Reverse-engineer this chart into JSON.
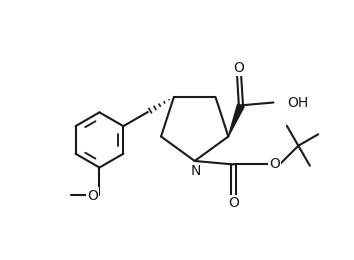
{
  "bg_color": "#ffffff",
  "line_color": "#1a1a1a",
  "lw": 1.5,
  "figsize": [
    3.54,
    2.6
  ],
  "dpi": 100,
  "xlim": [
    0,
    10
  ],
  "ylim": [
    0,
    7.35
  ]
}
